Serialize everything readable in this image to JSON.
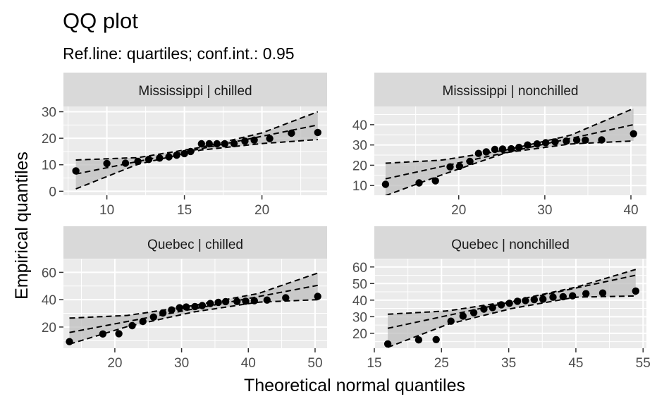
{
  "chart_data": {
    "type": "scatter",
    "title": "QQ plot",
    "subtitle": "Ref.line: quartiles; conf.int.: 0.95",
    "xlabel": "Theoretical normal quantiles",
    "ylabel": "Empirical quantiles",
    "grid": true,
    "legend": "none",
    "point_color": "#000000",
    "band_color": "#bdbdbd",
    "panel_bg": "#ebebeb",
    "strip_bg": "#d9d9d9",
    "panels": [
      {
        "strip": "Mississippi | chilled",
        "xlim": [
          7.2,
          24.2
        ],
        "ylim": [
          -1.5,
          32
        ],
        "xticks": [
          10,
          15,
          20
        ],
        "yticks": [
          0,
          10,
          20,
          30
        ],
        "points": [
          [
            8.0,
            7.7
          ],
          [
            10.0,
            10.5
          ],
          [
            11.2,
            10.6
          ],
          [
            12.0,
            11.3
          ],
          [
            12.7,
            12.0
          ],
          [
            13.4,
            12.5
          ],
          [
            14.0,
            13.0
          ],
          [
            14.5,
            13.6
          ],
          [
            15.0,
            14.2
          ],
          [
            15.4,
            15.0
          ],
          [
            16.1,
            17.9
          ],
          [
            16.6,
            17.9
          ],
          [
            17.1,
            17.9
          ],
          [
            17.6,
            17.9
          ],
          [
            18.2,
            18.0
          ],
          [
            18.9,
            18.9
          ],
          [
            19.5,
            19.3
          ],
          [
            20.5,
            19.9
          ],
          [
            21.9,
            21.9
          ],
          [
            23.6,
            22.2
          ]
        ],
        "ref_line": [
          [
            8.0,
            6.5
          ],
          [
            23.6,
            25.0
          ]
        ],
        "band_upper": [
          [
            8.0,
            11.8
          ],
          [
            12.0,
            12.7
          ],
          [
            16.0,
            16.5
          ],
          [
            20.0,
            22.0
          ],
          [
            23.6,
            30.0
          ]
        ],
        "band_lower": [
          [
            8.0,
            0.9
          ],
          [
            12.0,
            10.2
          ],
          [
            16.0,
            15.5
          ],
          [
            20.0,
            18.0
          ],
          [
            23.6,
            19.5
          ]
        ]
      },
      {
        "strip": "Mississippi | nonchilled",
        "xlim": [
          10.2,
          41.8
        ],
        "ylim": [
          5.2,
          49
        ],
        "xticks": [
          20,
          30,
          40
        ],
        "yticks": [
          10,
          20,
          30,
          40
        ],
        "points": [
          [
            11.5,
            10.6
          ],
          [
            15.4,
            11.3
          ],
          [
            17.3,
            12.3
          ],
          [
            19.0,
            19.2
          ],
          [
            20.1,
            19.5
          ],
          [
            21.3,
            21.9
          ],
          [
            22.3,
            25.8
          ],
          [
            23.2,
            26.6
          ],
          [
            24.2,
            27.8
          ],
          [
            25.1,
            28.0
          ],
          [
            26.1,
            28.1
          ],
          [
            27.0,
            28.8
          ],
          [
            28.0,
            30.0
          ],
          [
            29.1,
            30.5
          ],
          [
            30.1,
            31.1
          ],
          [
            31.2,
            31.5
          ],
          [
            32.5,
            31.9
          ],
          [
            33.7,
            32.4
          ],
          [
            34.7,
            32.4
          ],
          [
            36.6,
            32.5
          ],
          [
            40.3,
            35.5
          ]
        ],
        "ref_line": [
          [
            11.5,
            13.3
          ],
          [
            40.3,
            40.0
          ]
        ],
        "band_upper": [
          [
            11.5,
            21.0
          ],
          [
            18.0,
            22.5
          ],
          [
            25.5,
            27.5
          ],
          [
            33.0,
            34.8
          ],
          [
            40.3,
            48.0
          ]
        ],
        "band_lower": [
          [
            11.5,
            5.0
          ],
          [
            18.0,
            15.2
          ],
          [
            25.5,
            26.2
          ],
          [
            33.0,
            30.5
          ],
          [
            40.3,
            32.0
          ]
        ]
      },
      {
        "strip": "Quebec | chilled",
        "xlim": [
          12.3,
          51.8
        ],
        "ylim": [
          4.5,
          70
        ],
        "xticks": [
          20,
          30,
          40,
          50
        ],
        "yticks": [
          20,
          40,
          60
        ],
        "points": [
          [
            13.2,
            9.3
          ],
          [
            18.2,
            14.9
          ],
          [
            20.6,
            15.1
          ],
          [
            22.6,
            21.0
          ],
          [
            24.2,
            24.1
          ],
          [
            25.8,
            27.3
          ],
          [
            27.2,
            30.3
          ],
          [
            28.5,
            32.5
          ],
          [
            29.7,
            34.1
          ],
          [
            30.7,
            34.6
          ],
          [
            32.0,
            35.0
          ],
          [
            33.1,
            35.7
          ],
          [
            34.3,
            37.2
          ],
          [
            35.5,
            38.1
          ],
          [
            36.6,
            38.6
          ],
          [
            38.3,
            38.7
          ],
          [
            39.6,
            38.9
          ],
          [
            40.9,
            39.2
          ],
          [
            42.8,
            39.7
          ],
          [
            45.6,
            41.4
          ],
          [
            50.4,
            42.4
          ]
        ],
        "ref_line": [
          [
            13.2,
            16.0
          ],
          [
            50.4,
            50.5
          ]
        ],
        "band_upper": [
          [
            13.2,
            26.5
          ],
          [
            22.0,
            28.5
          ],
          [
            31.8,
            35.8
          ],
          [
            41.5,
            44.5
          ],
          [
            50.4,
            59.5
          ]
        ],
        "band_lower": [
          [
            13.2,
            7.5
          ],
          [
            22.0,
            20.5
          ],
          [
            31.8,
            31.0
          ],
          [
            41.5,
            38.2
          ],
          [
            50.4,
            40.0
          ]
        ]
      },
      {
        "strip": "Quebec | nonchilled",
        "xlim": [
          15.0,
          55.5
        ],
        "ylim": [
          11,
          65
        ],
        "xticks": [
          15,
          25,
          35,
          45,
          55
        ],
        "yticks": [
          20,
          30,
          40,
          50,
          60
        ],
        "points": [
          [
            17.0,
            13.6
          ],
          [
            21.6,
            16.0
          ],
          [
            24.2,
            16.2
          ],
          [
            26.4,
            27.3
          ],
          [
            28.2,
            30.4
          ],
          [
            29.8,
            32.4
          ],
          [
            31.3,
            34.6
          ],
          [
            32.6,
            35.5
          ],
          [
            33.9,
            37.2
          ],
          [
            35.1,
            38.1
          ],
          [
            36.3,
            39.3
          ],
          [
            37.5,
            39.7
          ],
          [
            38.8,
            40.3
          ],
          [
            40.1,
            40.6
          ],
          [
            41.6,
            41.8
          ],
          [
            43.1,
            42.1
          ],
          [
            44.5,
            42.6
          ],
          [
            46.5,
            43.9
          ],
          [
            49.0,
            44.3
          ],
          [
            53.9,
            45.5
          ]
        ],
        "ref_line": [
          [
            17.0,
            23.0
          ],
          [
            53.9,
            55.0
          ]
        ],
        "band_upper": [
          [
            17.0,
            31.5
          ],
          [
            26.0,
            33.5
          ],
          [
            35.5,
            39.5
          ],
          [
            45.0,
            47.8
          ],
          [
            53.9,
            58.5
          ]
        ],
        "band_lower": [
          [
            17.0,
            11.5
          ],
          [
            26.0,
            25.5
          ],
          [
            35.5,
            35.0
          ],
          [
            45.0,
            41.8
          ],
          [
            53.9,
            42.5
          ]
        ]
      }
    ]
  }
}
